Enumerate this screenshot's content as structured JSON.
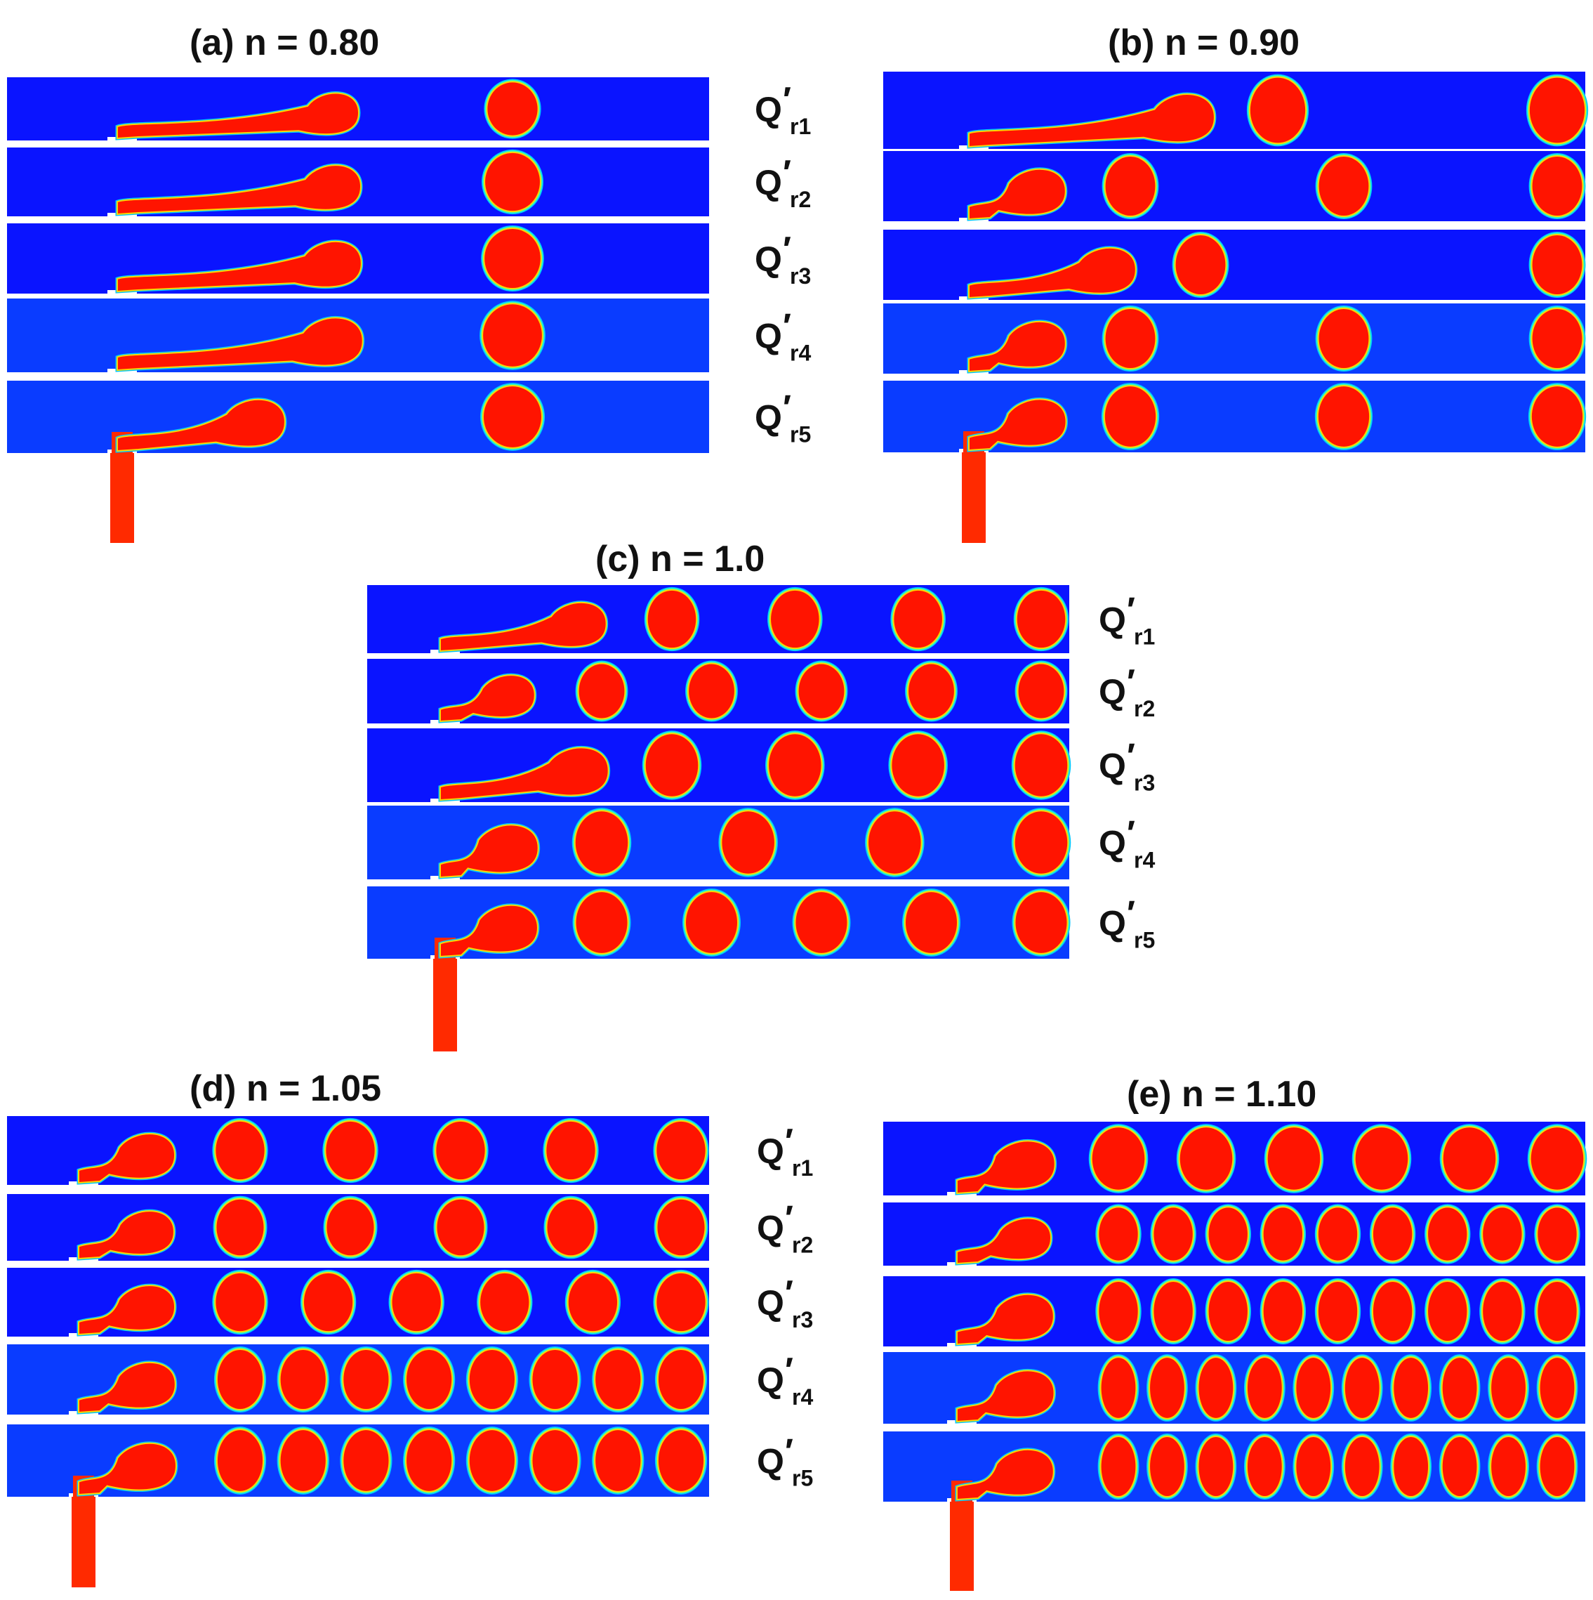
{
  "colors": {
    "channel_dark": "#0a14ff",
    "channel_light": "#0a3cff",
    "droplet": "#ff1400",
    "droplet_edge_inner": "#ffd400",
    "droplet_edge_mid": "#3cffb4",
    "droplet_edge_outer": "#00c8ff",
    "inlet": "#ff2a00",
    "text": "#111111"
  },
  "row_label_main": "Q",
  "row_label_prime": "′",
  "panels": [
    {
      "id": "a",
      "tag": "(a)",
      "label": "n = 0.80",
      "rows": [
        {
          "sub": "r1",
          "droplets": 1,
          "neck": "long"
        },
        {
          "sub": "r2",
          "droplets": 1,
          "neck": "long"
        },
        {
          "sub": "r3",
          "droplets": 1,
          "neck": "long"
        },
        {
          "sub": "r4",
          "droplets": 1,
          "neck": "long"
        },
        {
          "sub": "r5",
          "droplets": 1,
          "neck": "medium"
        }
      ]
    },
    {
      "id": "b",
      "tag": "(b)",
      "label": "n = 0.90",
      "rows": [
        {
          "sub": "r1",
          "droplets": 2,
          "neck": "long"
        },
        {
          "sub": "r2",
          "droplets": 3,
          "neck": "short"
        },
        {
          "sub": "r3",
          "droplets": 2,
          "neck": "medium"
        },
        {
          "sub": "r4",
          "droplets": 3,
          "neck": "short"
        },
        {
          "sub": "r5",
          "droplets": 3,
          "neck": "short"
        }
      ]
    },
    {
      "id": "c",
      "tag": "(c)",
      "label": "n = 1.0",
      "rows": [
        {
          "sub": "r1",
          "droplets": 4,
          "neck": "medium"
        },
        {
          "sub": "r2",
          "droplets": 5,
          "neck": "short"
        },
        {
          "sub": "r3",
          "droplets": 4,
          "neck": "medium"
        },
        {
          "sub": "r4",
          "droplets": 4,
          "neck": "short"
        },
        {
          "sub": "r5",
          "droplets": 5,
          "neck": "short"
        }
      ]
    },
    {
      "id": "d",
      "tag": "(d)",
      "label": "n = 1.05",
      "rows": [
        {
          "sub": "r1",
          "droplets": 5,
          "neck": "short"
        },
        {
          "sub": "r2",
          "droplets": 5,
          "neck": "short"
        },
        {
          "sub": "r3",
          "droplets": 6,
          "neck": "short"
        },
        {
          "sub": "r4",
          "droplets": 8,
          "neck": "short"
        },
        {
          "sub": "r5",
          "droplets": 8,
          "neck": "short"
        }
      ]
    },
    {
      "id": "e",
      "tag": "(e)",
      "label": "n = 1.10",
      "rows": [
        {
          "sub": "r1",
          "droplets": 6,
          "neck": "short"
        },
        {
          "sub": "r2",
          "droplets": 9,
          "neck": "short"
        },
        {
          "sub": "r3",
          "droplets": 9,
          "neck": "short"
        },
        {
          "sub": "r4",
          "droplets": 10,
          "neck": "short"
        },
        {
          "sub": "r5",
          "droplets": 10,
          "neck": "short"
        }
      ]
    }
  ]
}
